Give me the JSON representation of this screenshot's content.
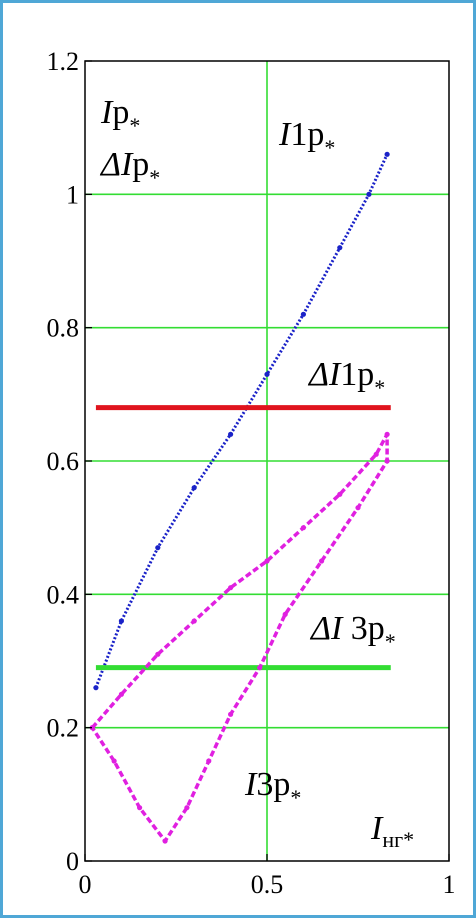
{
  "chart_data": {
    "type": "scatter",
    "title": "",
    "xlim": [
      0,
      1
    ],
    "ylim": [
      0,
      1.2
    ],
    "xticks": [
      "0",
      "0.5",
      "1"
    ],
    "yticks": [
      "0",
      "0.2",
      "0.4",
      "0.6",
      "0.8",
      "1",
      "1.2"
    ],
    "grid": true,
    "grid_color": "#33dd33",
    "labels": {
      "y_axis_1": {
        "main": "I",
        "rest": "p",
        "sub": "*"
      },
      "y_axis_2": {
        "main": "ΔI",
        "rest": "p",
        "sub": "*"
      },
      "x_axis": {
        "main": "I",
        "sub": "нг*"
      },
      "I1p": {
        "main": "I",
        "rest": "1p",
        "sub": "*"
      },
      "dI1p": {
        "main": "ΔI",
        "rest": "1p",
        "sub": "*"
      },
      "dI3p": {
        "main": "ΔI",
        "rest": " 3p",
        "sub": "*"
      },
      "I3p": {
        "main": "I",
        "rest": "3p",
        "sub": "*"
      }
    },
    "series": [
      {
        "name": "I1p*",
        "kind": "scatter",
        "color": "#1a22c8",
        "x": [
          0.03,
          0.1,
          0.2,
          0.3,
          0.4,
          0.5,
          0.6,
          0.7,
          0.78,
          0.83
        ],
        "y": [
          0.26,
          0.36,
          0.47,
          0.56,
          0.64,
          0.73,
          0.82,
          0.92,
          1.0,
          1.06
        ]
      },
      {
        "name": "ΔI1p*",
        "kind": "line",
        "color": "#e0141e",
        "x": [
          0.03,
          0.84
        ],
        "y": [
          0.68,
          0.68
        ]
      },
      {
        "name": "ΔI3p*",
        "kind": "line",
        "color": "#33dd33",
        "x": [
          0.03,
          0.84
        ],
        "y": [
          0.29,
          0.29
        ]
      },
      {
        "name": "I3p*",
        "kind": "scatter",
        "color": "#e020e0",
        "x": [
          0.02,
          0.1,
          0.2,
          0.3,
          0.4,
          0.5,
          0.6,
          0.7,
          0.8,
          0.83,
          0.83,
          0.75,
          0.65,
          0.55,
          0.48,
          0.4,
          0.34,
          0.28,
          0.22,
          0.15,
          0.08,
          0.02
        ],
        "y": [
          0.2,
          0.25,
          0.31,
          0.36,
          0.41,
          0.45,
          0.5,
          0.55,
          0.61,
          0.64,
          0.6,
          0.53,
          0.45,
          0.37,
          0.29,
          0.22,
          0.15,
          0.08,
          0.03,
          0.08,
          0.15,
          0.2
        ]
      }
    ]
  }
}
